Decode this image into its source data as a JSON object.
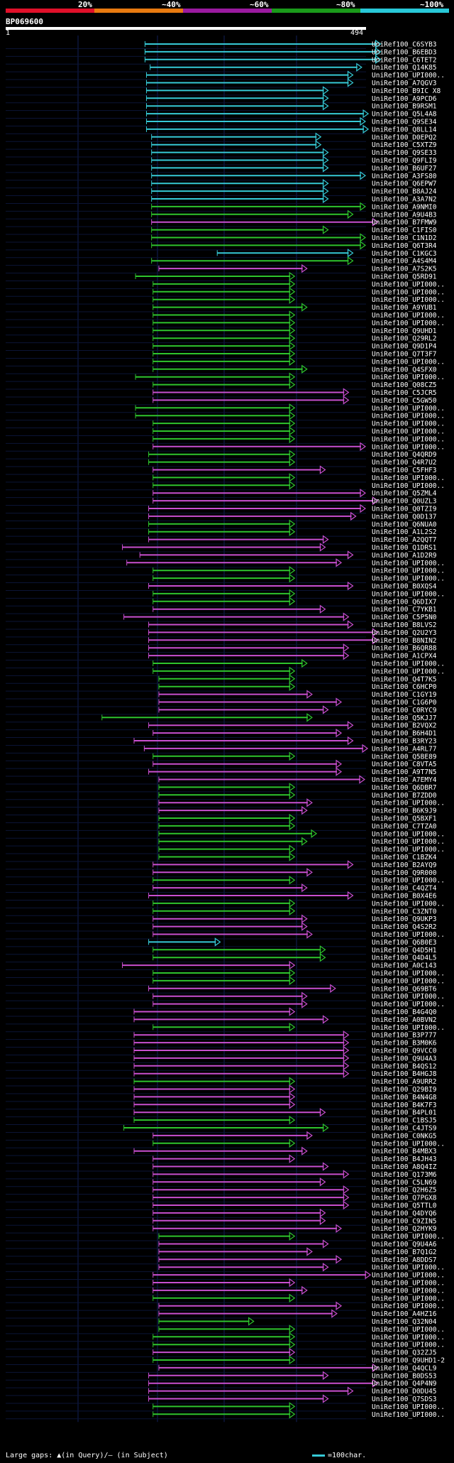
{
  "legend": {
    "labels": [
      "20%",
      "~40%",
      "~60%",
      "~80%",
      "~100%"
    ],
    "colors": [
      "#e0102a",
      "#e87a10",
      "#9b1aa0",
      "#1a9a1a",
      "#28c8d8"
    ]
  },
  "query": {
    "id": "BP069600",
    "start": "1",
    "end": "494"
  },
  "hits": [
    {
      "label": "UniRef100_C6SYB3",
      "s": 191,
      "e": 514,
      "c": "cyan"
    },
    {
      "label": "UniRef100_B6EBD3",
      "s": 191,
      "e": 514,
      "c": "cyan"
    },
    {
      "label": "UniRef100_C6TET2",
      "s": 191,
      "e": 514,
      "c": "cyan"
    },
    {
      "label": "UniRef100_Q14K85",
      "s": 198,
      "e": 488,
      "c": "cyan"
    },
    {
      "label": "UniRef100_UPI000..",
      "s": 193,
      "e": 476,
      "c": "cyan"
    },
    {
      "label": "UniRef100_A7QGV3",
      "s": 193,
      "e": 476,
      "c": "cyan"
    },
    {
      "label": "UniRef100_B9IC X8",
      "s": 193,
      "e": 442,
      "c": "cyan"
    },
    {
      "label": "UniRef100_A9PCD6",
      "s": 193,
      "e": 442,
      "c": "cyan"
    },
    {
      "label": "UniRef100_B9RSM1",
      "s": 193,
      "e": 442,
      "c": "cyan"
    },
    {
      "label": "UniRef100_Q5L4A8",
      "s": 193,
      "e": 497,
      "c": "cyan"
    },
    {
      "label": "UniRef100_Q9SE34",
      "s": 193,
      "e": 493,
      "c": "cyan"
    },
    {
      "label": "UniRef100_Q8LL14",
      "s": 193,
      "e": 497,
      "c": "cyan"
    },
    {
      "label": "UniRef100_D0EPQ2",
      "s": 200,
      "e": 432,
      "c": "cyan"
    },
    {
      "label": "UniRef100_C5XTZ9",
      "s": 200,
      "e": 432,
      "c": "cyan"
    },
    {
      "label": "UniRef100_Q9SE33",
      "s": 200,
      "e": 442,
      "c": "cyan"
    },
    {
      "label": "UniRef100_Q9FLI9",
      "s": 200,
      "e": 442,
      "c": "cyan"
    },
    {
      "label": "UniRef100_B6UF27",
      "s": 200,
      "e": 442,
      "c": "cyan"
    },
    {
      "label": "UniRef100_A3FS80",
      "s": 200,
      "e": 493,
      "c": "cyan"
    },
    {
      "label": "UniRef100_Q6EPW7",
      "s": 200,
      "e": 442,
      "c": "cyan"
    },
    {
      "label": "UniRef100_B8AJ24",
      "s": 200,
      "e": 442,
      "c": "cyan"
    },
    {
      "label": "UniRef100_A3A7N2",
      "s": 200,
      "e": 442,
      "c": "cyan"
    },
    {
      "label": "UniRef100_A9NMI0",
      "s": 200,
      "e": 493,
      "c": "green"
    },
    {
      "label": "UniRef100_A9U4B3",
      "s": 200,
      "e": 476,
      "c": "green"
    },
    {
      "label": "UniRef100_B7FMW9",
      "s": 200,
      "e": 510,
      "c": "purple"
    },
    {
      "label": "UniRef100_C1FIS0",
      "s": 200,
      "e": 442,
      "c": "green"
    },
    {
      "label": "UniRef100_C1N1D2",
      "s": 200,
      "e": 493,
      "c": "green"
    },
    {
      "label": "UniRef100_Q6T3R4",
      "s": 200,
      "e": 493,
      "c": "green"
    },
    {
      "label": "UniRef100_C1KGC3",
      "s": 290,
      "e": 476,
      "c": "cyan"
    },
    {
      "label": "UniRef100_A4S4M4",
      "s": 200,
      "e": 476,
      "c": "green"
    },
    {
      "label": "UniRef100_A7S2K5",
      "s": 210,
      "e": 413,
      "c": "purple"
    },
    {
      "label": "UniRef100_Q5RD91",
      "s": 178,
      "e": 396,
      "c": "green"
    },
    {
      "label": "UniRef100_UPI000..",
      "s": 202,
      "e": 396,
      "c": "green"
    },
    {
      "label": "UniRef100_UPI000..",
      "s": 202,
      "e": 396,
      "c": "green"
    },
    {
      "label": "UniRef100_UPI000..",
      "s": 202,
      "e": 396,
      "c": "green"
    },
    {
      "label": "UniRef100_A9YUB1",
      "s": 202,
      "e": 413,
      "c": "green"
    },
    {
      "label": "UniRef100_UPI000..",
      "s": 202,
      "e": 396,
      "c": "green"
    },
    {
      "label": "UniRef100_UPI000..",
      "s": 202,
      "e": 396,
      "c": "green"
    },
    {
      "label": "UniRef100_Q9UHD1",
      "s": 202,
      "e": 396,
      "c": "green"
    },
    {
      "label": "UniRef100_Q29RL2",
      "s": 202,
      "e": 396,
      "c": "green"
    },
    {
      "label": "UniRef100_Q9D1P4",
      "s": 202,
      "e": 396,
      "c": "green"
    },
    {
      "label": "UniRef100_Q7T3F7",
      "s": 202,
      "e": 396,
      "c": "green"
    },
    {
      "label": "UniRef100_UPI000..",
      "s": 202,
      "e": 396,
      "c": "green"
    },
    {
      "label": "UniRef100_Q4SFX0",
      "s": 202,
      "e": 413,
      "c": "green"
    },
    {
      "label": "UniRef100_UPI000..",
      "s": 178,
      "e": 396,
      "c": "green"
    },
    {
      "label": "UniRef100_Q08CZ5",
      "s": 202,
      "e": 396,
      "c": "green"
    },
    {
      "label": "UniRef100_C5JCR5",
      "s": 202,
      "e": 470,
      "c": "purple"
    },
    {
      "label": "UniRef100_C5GW50",
      "s": 202,
      "e": 470,
      "c": "purple"
    },
    {
      "label": "UniRef100_UPI000..",
      "s": 178,
      "e": 396,
      "c": "green"
    },
    {
      "label": "UniRef100_UPI000..",
      "s": 178,
      "e": 396,
      "c": "green"
    },
    {
      "label": "UniRef100_UPI000..",
      "s": 202,
      "e": 396,
      "c": "green"
    },
    {
      "label": "UniRef100_UPI000..",
      "s": 202,
      "e": 396,
      "c": "green"
    },
    {
      "label": "UniRef100_UPI000..",
      "s": 202,
      "e": 396,
      "c": "green"
    },
    {
      "label": "UniRef100_UPI000..",
      "s": 202,
      "e": 493,
      "c": "purple"
    },
    {
      "label": "UniRef100_Q4QRD9",
      "s": 196,
      "e": 396,
      "c": "green"
    },
    {
      "label": "UniRef100_Q4R7U2",
      "s": 196,
      "e": 396,
      "c": "green"
    },
    {
      "label": "UniRef100_C5FHF3",
      "s": 202,
      "e": 438,
      "c": "purple"
    },
    {
      "label": "UniRef100_UPI000..",
      "s": 202,
      "e": 396,
      "c": "green"
    },
    {
      "label": "UniRef100_UPI000..",
      "s": 202,
      "e": 396,
      "c": "green"
    },
    {
      "label": "UniRef100_Q5ZML4",
      "s": 202,
      "e": 493,
      "c": "purple"
    },
    {
      "label": "UniRef100_Q0UZL3",
      "s": 202,
      "e": 510,
      "c": "purple"
    },
    {
      "label": "UniRef100_Q0TZI9",
      "s": 196,
      "e": 493,
      "c": "purple"
    },
    {
      "label": "UniRef100_Q0D137",
      "s": 196,
      "e": 480,
      "c": "purple"
    },
    {
      "label": "UniRef100_Q6NUA0",
      "s": 196,
      "e": 396,
      "c": "green"
    },
    {
      "label": "UniRef100_A1L2S2",
      "s": 196,
      "e": 396,
      "c": "green"
    },
    {
      "label": "UniRef100_A2QQT7",
      "s": 196,
      "e": 442,
      "c": "purple"
    },
    {
      "label": "UniRef100_Q1DRS1",
      "s": 160,
      "e": 438,
      "c": "purple"
    },
    {
      "label": "UniRef100_A1D2R9",
      "s": 184,
      "e": 476,
      "c": "purple"
    },
    {
      "label": "UniRef100_UPI000..",
      "s": 166,
      "e": 460,
      "c": "purple"
    },
    {
      "label": "UniRef100_UPI000..",
      "s": 202,
      "e": 396,
      "c": "green"
    },
    {
      "label": "UniRef100_UPI000..",
      "s": 202,
      "e": 396,
      "c": "green"
    },
    {
      "label": "UniRef100_B0XQS4",
      "s": 196,
      "e": 476,
      "c": "purple"
    },
    {
      "label": "UniRef100_UPI000..",
      "s": 202,
      "e": 396,
      "c": "green"
    },
    {
      "label": "UniRef100_Q6DIX7",
      "s": 202,
      "e": 396,
      "c": "green"
    },
    {
      "label": "UniRef100_C7YKB1",
      "s": 202,
      "e": 438,
      "c": "purple"
    },
    {
      "label": "UniRef100_C5P5N0",
      "s": 162,
      "e": 470,
      "c": "purple"
    },
    {
      "label": "UniRef100_B8LVS2",
      "s": 196,
      "e": 476,
      "c": "purple"
    },
    {
      "label": "UniRef100_Q2U2Y3",
      "s": 196,
      "e": 510,
      "c": "purple"
    },
    {
      "label": "UniRef100_B8NIN2",
      "s": 196,
      "e": 510,
      "c": "purple"
    },
    {
      "label": "UniRef100_B6QR88",
      "s": 196,
      "e": 470,
      "c": "purple"
    },
    {
      "label": "UniRef100_A1CPX4",
      "s": 196,
      "e": 470,
      "c": "purple"
    },
    {
      "label": "UniRef100_UPI000..",
      "s": 202,
      "e": 413,
      "c": "green"
    },
    {
      "label": "UniRef100_UPI000..",
      "s": 202,
      "e": 396,
      "c": "green"
    },
    {
      "label": "UniRef100_Q4T7K5",
      "s": 210,
      "e": 396,
      "c": "green"
    },
    {
      "label": "UniRef100_C6HCP0",
      "s": 210,
      "e": 396,
      "c": "green"
    },
    {
      "label": "UniRef100_C1GY19",
      "s": 210,
      "e": 420,
      "c": "purple"
    },
    {
      "label": "UniRef100_C1G6P0",
      "s": 210,
      "e": 460,
      "c": "purple"
    },
    {
      "label": "UniRef100_C0RYC9",
      "s": 210,
      "e": 442,
      "c": "purple"
    },
    {
      "label": "UniRef100_Q5KJJ7",
      "s": 132,
      "e": 420,
      "c": "green"
    },
    {
      "label": "UniRef100_B2VQX2",
      "s": 196,
      "e": 476,
      "c": "purple"
    },
    {
      "label": "UniRef100_B6H4D1",
      "s": 202,
      "e": 460,
      "c": "purple"
    },
    {
      "label": "UniRef100_B3RY23",
      "s": 176,
      "e": 476,
      "c": "purple"
    },
    {
      "label": "UniRef100_A4RL77",
      "s": 190,
      "e": 496,
      "c": "purple"
    },
    {
      "label": "UniRef100_Q5BE89",
      "s": 202,
      "e": 396,
      "c": "green"
    },
    {
      "label": "UniRef100_C8VTA5",
      "s": 202,
      "e": 460,
      "c": "purple"
    },
    {
      "label": "UniRef100_A9T7N5",
      "s": 196,
      "e": 460,
      "c": "purple"
    },
    {
      "label": "UniRef100_A7EMY4",
      "s": 210,
      "e": 492,
      "c": "purple"
    },
    {
      "label": "UniRef100_Q6DBR7",
      "s": 210,
      "e": 396,
      "c": "green"
    },
    {
      "label": "UniRef100_B7ZDD0",
      "s": 210,
      "e": 396,
      "c": "green"
    },
    {
      "label": "UniRef100_UPI000..",
      "s": 210,
      "e": 420,
      "c": "purple"
    },
    {
      "label": "UniRef100_B6K9J9",
      "s": 210,
      "e": 413,
      "c": "purple"
    },
    {
      "label": "UniRef100_Q5BXF1",
      "s": 210,
      "e": 396,
      "c": "green"
    },
    {
      "label": "UniRef100_C7TZA0",
      "s": 210,
      "e": 396,
      "c": "green"
    },
    {
      "label": "UniRef100_UPI000..",
      "s": 210,
      "e": 426,
      "c": "green"
    },
    {
      "label": "UniRef100_UPI000..",
      "s": 210,
      "e": 413,
      "c": "green"
    },
    {
      "label": "UniRef100_UPI000..",
      "s": 210,
      "e": 396,
      "c": "green"
    },
    {
      "label": "UniRef100_C1BZK4",
      "s": 210,
      "e": 396,
      "c": "green"
    },
    {
      "label": "UniRef100_B2AYQ9",
      "s": 202,
      "e": 476,
      "c": "purple"
    },
    {
      "label": "UniRef100_Q9R000",
      "s": 202,
      "e": 420,
      "c": "purple"
    },
    {
      "label": "UniRef100_UPI000..",
      "s": 202,
      "e": 396,
      "c": "green"
    },
    {
      "label": "UniRef100_C4QZT4",
      "s": 202,
      "e": 413,
      "c": "purple"
    },
    {
      "label": "UniRef100_B0X4E6",
      "s": 196,
      "e": 476,
      "c": "purple"
    },
    {
      "label": "UniRef100_UPI000..",
      "s": 202,
      "e": 396,
      "c": "green"
    },
    {
      "label": "UniRef100_C3ZNT0",
      "s": 202,
      "e": 396,
      "c": "green"
    },
    {
      "label": "UniRef100_Q9UKP3",
      "s": 202,
      "e": 413,
      "c": "purple"
    },
    {
      "label": "UniRef100_Q4S2R2",
      "s": 202,
      "e": 413,
      "c": "purple"
    },
    {
      "label": "UniRef100_UPI000..",
      "s": 202,
      "e": 420,
      "c": "purple"
    },
    {
      "label": "UniRef100_Q6B0E3",
      "s": 196,
      "e": 294,
      "c": "cyan"
    },
    {
      "label": "UniRef100_Q4D5H1",
      "s": 202,
      "e": 438,
      "c": "green"
    },
    {
      "label": "UniRef100_Q4D4L5",
      "s": 202,
      "e": 438,
      "c": "green"
    },
    {
      "label": "UniRef100_A0C143",
      "s": 160,
      "e": 396,
      "c": "purple"
    },
    {
      "label": "UniRef100_UPI000..",
      "s": 202,
      "e": 396,
      "c": "green"
    },
    {
      "label": "UniRef100_UPI000..",
      "s": 202,
      "e": 396,
      "c": "green"
    },
    {
      "label": "UniRef100_Q69BT6",
      "s": 196,
      "e": 452,
      "c": "purple"
    },
    {
      "label": "UniRef100_UPI000..",
      "s": 202,
      "e": 413,
      "c": "purple"
    },
    {
      "label": "UniRef100_UPI000..",
      "s": 202,
      "e": 413,
      "c": "purple"
    },
    {
      "label": "UniRef100_B4G4Q0",
      "s": 176,
      "e": 396,
      "c": "purple"
    },
    {
      "label": "UniRef100_A0BVN2",
      "s": 176,
      "e": 442,
      "c": "purple"
    },
    {
      "label": "UniRef100_UPI000..",
      "s": 202,
      "e": 396,
      "c": "green"
    },
    {
      "label": "UniRef100_B3P777",
      "s": 176,
      "e": 470,
      "c": "purple"
    },
    {
      "label": "UniRef100_B3M0K6",
      "s": 176,
      "e": 470,
      "c": "purple"
    },
    {
      "label": "UniRef100_Q9VCC0",
      "s": 176,
      "e": 470,
      "c": "purple"
    },
    {
      "label": "UniRef100_Q9U4A3",
      "s": 176,
      "e": 470,
      "c": "purple"
    },
    {
      "label": "UniRef100_B4QS12",
      "s": 176,
      "e": 470,
      "c": "purple"
    },
    {
      "label": "UniRef100_B4HGJ8",
      "s": 176,
      "e": 470,
      "c": "purple"
    },
    {
      "label": "UniRef100_A9URR2",
      "s": 176,
      "e": 396,
      "c": "green"
    },
    {
      "label": "UniRef100_Q29BI9",
      "s": 176,
      "e": 396,
      "c": "purple"
    },
    {
      "label": "UniRef100_B4N4G8",
      "s": 176,
      "e": 396,
      "c": "purple"
    },
    {
      "label": "UniRef100_B4K7F3",
      "s": 176,
      "e": 396,
      "c": "purple"
    },
    {
      "label": "UniRef100_B4PL01",
      "s": 176,
      "e": 438,
      "c": "purple"
    },
    {
      "label": "UniRef100_C1BSJ5",
      "s": 176,
      "e": 396,
      "c": "green"
    },
    {
      "label": "UniRef100_C4JTS9",
      "s": 162,
      "e": 442,
      "c": "green"
    },
    {
      "label": "UniRef100_C0NKG5",
      "s": 202,
      "e": 420,
      "c": "purple"
    },
    {
      "label": "UniRef100_UPI000..",
      "s": 202,
      "e": 396,
      "c": "green"
    },
    {
      "label": "UniRef100_B4MBX3",
      "s": 176,
      "e": 413,
      "c": "purple"
    },
    {
      "label": "UniRef100_B4JH43",
      "s": 202,
      "e": 396,
      "c": "purple"
    },
    {
      "label": "UniRef100_A8Q4IZ",
      "s": 202,
      "e": 442,
      "c": "purple"
    },
    {
      "label": "UniRef100_Q173M6",
      "s": 202,
      "e": 470,
      "c": "purple"
    },
    {
      "label": "UniRef100_C5LN69",
      "s": 202,
      "e": 438,
      "c": "purple"
    },
    {
      "label": "UniRef100_Q2H6Z5",
      "s": 202,
      "e": 470,
      "c": "purple"
    },
    {
      "label": "UniRef100_Q7PGX8",
      "s": 202,
      "e": 470,
      "c": "purple"
    },
    {
      "label": "UniRef100_Q5TTL0",
      "s": 202,
      "e": 470,
      "c": "purple"
    },
    {
      "label": "UniRef100_Q4DYQ6",
      "s": 202,
      "e": 438,
      "c": "purple"
    },
    {
      "label": "UniRef100_C9ZIN5",
      "s": 202,
      "e": 438,
      "c": "purple"
    },
    {
      "label": "UniRef100_Q2HYK9",
      "s": 202,
      "e": 460,
      "c": "purple"
    },
    {
      "label": "UniRef100_UPI000..",
      "s": 210,
      "e": 396,
      "c": "green"
    },
    {
      "label": "UniRef100_Q9U4A6",
      "s": 210,
      "e": 442,
      "c": "purple"
    },
    {
      "label": "UniRef100_B7Q1G2",
      "s": 210,
      "e": 420,
      "c": "purple"
    },
    {
      "label": "UniRef100_A8DDS7",
      "s": 210,
      "e": 460,
      "c": "purple"
    },
    {
      "label": "UniRef100_UPI000..",
      "s": 210,
      "e": 442,
      "c": "purple"
    },
    {
      "label": "UniRef100_UPI000..",
      "s": 202,
      "e": 500,
      "c": "purple"
    },
    {
      "label": "UniRef100_UPI000..",
      "s": 202,
      "e": 396,
      "c": "purple"
    },
    {
      "label": "UniRef100_UPI000..",
      "s": 202,
      "e": 413,
      "c": "purple"
    },
    {
      "label": "UniRef100_UPI000..",
      "s": 202,
      "e": 396,
      "c": "green"
    },
    {
      "label": "UniRef100_UPI000..",
      "s": 210,
      "e": 460,
      "c": "purple"
    },
    {
      "label": "UniRef100_A4HZ16",
      "s": 210,
      "e": 454,
      "c": "purple"
    },
    {
      "label": "UniRef100_Q32N04",
      "s": 210,
      "e": 340,
      "c": "green"
    },
    {
      "label": "UniRef100_UPI000..",
      "s": 210,
      "e": 396,
      "c": "green"
    },
    {
      "label": "UniRef100_UPI000..",
      "s": 202,
      "e": 396,
      "c": "green"
    },
    {
      "label": "UniRef100_UPI000..",
      "s": 202,
      "e": 396,
      "c": "green"
    },
    {
      "label": "UniRef100_Q32ZJ5",
      "s": 202,
      "e": 396,
      "c": "purple"
    },
    {
      "label": "UniRef100_Q9UHD1-2",
      "s": 202,
      "e": 396,
      "c": "green"
    },
    {
      "label": "UniRef100_Q4QCL9",
      "s": 210,
      "e": 510,
      "c": "purple"
    },
    {
      "label": "UniRef100_B0DS53",
      "s": 196,
      "e": 442,
      "c": "purple"
    },
    {
      "label": "UniRef100_Q4P4N9",
      "s": 196,
      "e": 510,
      "c": "purple"
    },
    {
      "label": "UniRef100_D0DU45",
      "s": 196,
      "e": 476,
      "c": "purple"
    },
    {
      "label": "UniRef100_Q7SDS3",
      "s": 196,
      "e": 442,
      "c": "purple"
    },
    {
      "label": "UniRef100_UPI000..",
      "s": 202,
      "e": 396,
      "c": "green"
    },
    {
      "label": "UniRef100_UPI000..",
      "s": 202,
      "e": 396,
      "c": "green"
    }
  ],
  "footer": {
    "gaps_text": "Large gaps: ▲(in Query)/– (in Subject)",
    "scale_text": "=100char."
  },
  "colors": {
    "cyan": "#36c9d6",
    "green": "#2ec42e",
    "purple": "#c84fd0",
    "grid": "#12205a"
  }
}
